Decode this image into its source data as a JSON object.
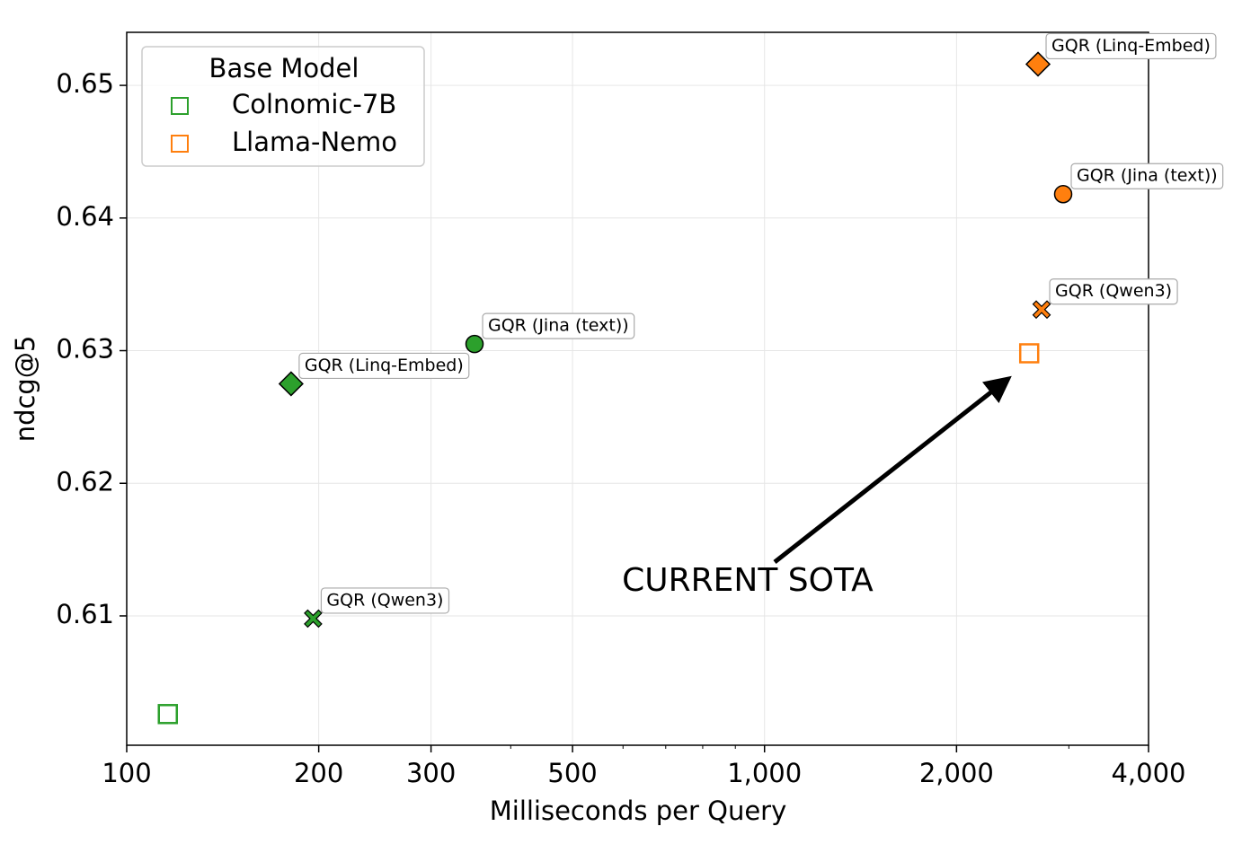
{
  "chart_data": {
    "type": "scatter",
    "xlabel": "Milliseconds per Query",
    "ylabel": "ndcg@5",
    "xscale": "log",
    "grid": true,
    "xlim": [
      100,
      4000
    ],
    "ylim": [
      0.60025,
      0.654
    ],
    "xticks": [
      100,
      200,
      300,
      500,
      {
        "value": 1000,
        "label": "1,000"
      },
      {
        "value": 2000,
        "label": "2,000"
      },
      {
        "value": 4000,
        "label": "4,000"
      }
    ],
    "xminorticks": [
      400,
      600,
      700,
      800,
      900,
      3000
    ],
    "yticks": [
      0.61,
      0.62,
      0.63,
      0.64,
      0.65
    ],
    "legend_title": "Base Model",
    "legend_loc": "upper left",
    "series": [
      {
        "name": "Colnomic-7B",
        "color": "#2ca02c",
        "x": [
          116,
          181,
          351,
          196
        ],
        "values": [
          0.6026,
          0.6275,
          0.6305,
          0.6098
        ],
        "markers": [
          "s",
          "D",
          "o",
          "X"
        ],
        "labels": [
          null,
          "GQR (Linq-Embed)",
          "GQR (Jina (text))",
          "GQR (Qwen3)"
        ]
      },
      {
        "name": "Llama-Nemo",
        "color": "#ff7f0e",
        "x": [
          2600,
          2684,
          2939,
          2719
        ],
        "values": [
          0.6298,
          0.6516,
          0.6418,
          0.6331
        ],
        "markers": [
          "s",
          "D",
          "o",
          "X"
        ],
        "labels": [
          null,
          "GQR (Linq-Embed)",
          "GQR (Jina (text))",
          "GQR (Qwen3)"
        ]
      }
    ],
    "annotation": "CURRENT SOTA"
  }
}
